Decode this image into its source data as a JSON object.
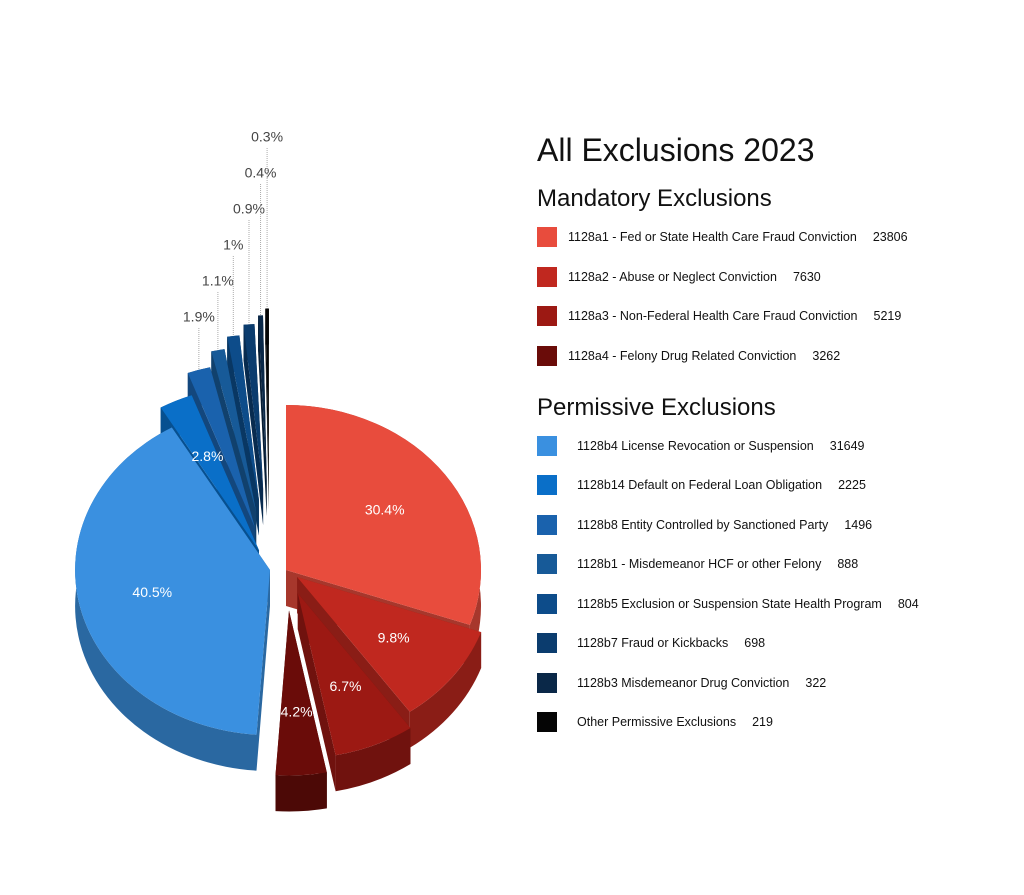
{
  "chart_data": {
    "type": "pie",
    "title": "All Exclusions 2023",
    "groups": [
      {
        "name": "Mandatory Exclusions",
        "categories": [
          "1128a1 - Fed or State Health Care Fraud Conviction",
          "1128a2 - Abuse or Neglect Conviction",
          "1128a3 - Non-Federal Health Care Fraud Conviction",
          "1128a4 - Felony Drug Related Conviction"
        ],
        "counts": [
          23806,
          7630,
          5219,
          3262
        ],
        "values": [
          30.4,
          9.8,
          6.7,
          4.2
        ],
        "value_labels": [
          "30.4%",
          "9.8%",
          "6.7%",
          "4.2%"
        ],
        "colors": [
          "#e84c3d",
          "#c0281f",
          "#9c1913",
          "#6a0c09"
        ]
      },
      {
        "name": "Permissive Exclusions",
        "categories": [
          "1128b4 License Revocation or Suspension",
          "1128b14 Default on Federal Loan Obligation",
          "1128b8 Entity Controlled by Sanctioned Party",
          "1128b1 - Misdemeanor HCF or other Felony",
          "1128b5 Exclusion or Suspension State Health Program",
          "1128b7 Fraud or Kickbacks",
          "1128b3 Misdemeanor Drug Conviction",
          "Other Permissive Exclusions"
        ],
        "counts": [
          31649,
          2225,
          1496,
          888,
          804,
          698,
          322,
          219
        ],
        "values": [
          40.5,
          2.8,
          1.9,
          1.1,
          1,
          0.9,
          0.4,
          0.3
        ],
        "value_labels": [
          "40.5%",
          "2.8%",
          "1.9%",
          "1.1%",
          "1%",
          "0.9%",
          "0.4%",
          "0.3%"
        ],
        "colors": [
          "#3a90e0",
          "#0a6fc8",
          "#1a62ad",
          "#175a98",
          "#0d4c8a",
          "#0b3c6e",
          "#0a2848",
          "#050505"
        ]
      }
    ]
  }
}
